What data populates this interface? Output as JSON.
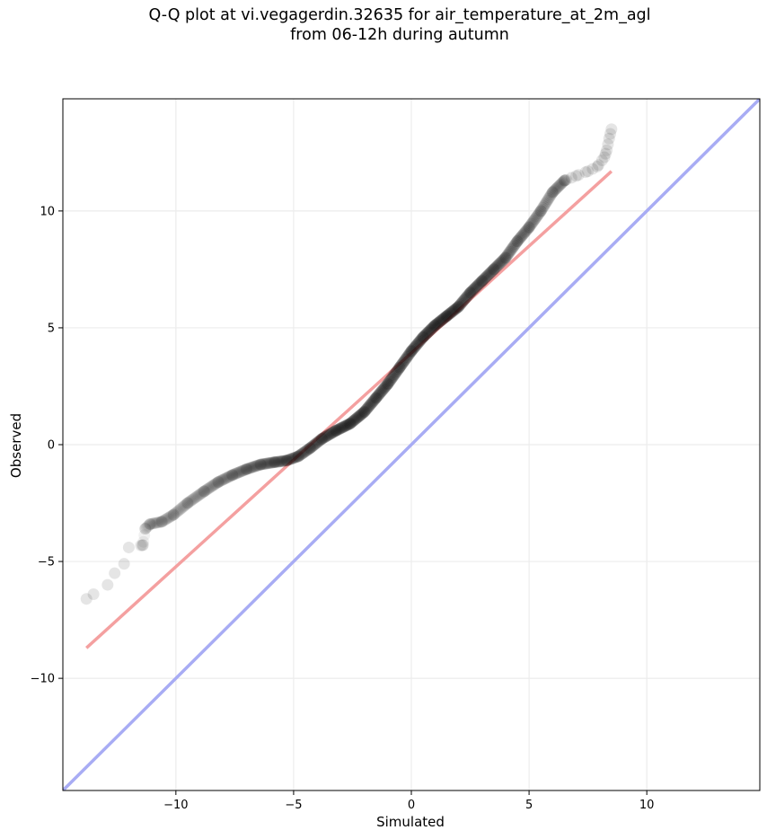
{
  "chart_data": {
    "type": "scatter",
    "title": "Q-Q plot at vi.vegagerdin.32635 for air_temperature_at_2m_agl",
    "subtitle": "from 06-12h during autumn",
    "xlabel": "Simulated",
    "ylabel": "Observed",
    "xlim": [
      -14.8,
      14.8
    ],
    "ylim": [
      -14.8,
      14.8
    ],
    "xticks": [
      -10,
      -5,
      0,
      5,
      10
    ],
    "yticks": [
      -10,
      -5,
      0,
      5,
      10
    ],
    "xtick_labels": [
      "−10",
      "−5",
      "0",
      "5",
      "10"
    ],
    "ytick_labels": [
      "−10",
      "−5",
      "0",
      "5",
      "10"
    ],
    "grid": true,
    "legend": "none",
    "colors": {
      "points": "#000000",
      "fit_line": "#f4a0a0",
      "identity_line": "#a8acf4"
    },
    "fit_line": {
      "x": [
        -13.8,
        8.5
      ],
      "y": [
        -8.7,
        11.7
      ]
    },
    "identity_line": {
      "x": [
        -14.8,
        14.8
      ],
      "y": [
        -14.8,
        14.8
      ]
    },
    "anchors": {
      "x": [
        -13.8,
        -13.5,
        -12.9,
        -12.6,
        -12.2,
        -12.0,
        -11.4,
        -11.3,
        -11.1,
        -10.6,
        -10.1,
        -9.5,
        -8.8,
        -8.2,
        -7.6,
        -7.0,
        -6.4,
        -5.8,
        -5.3,
        -4.8,
        -4.3,
        -3.8,
        -3.2,
        -2.6,
        -2.0,
        -1.5,
        -1.0,
        -0.5,
        0.0,
        0.5,
        1.0,
        1.5,
        2.0,
        2.5,
        3.0,
        3.5,
        4.0,
        4.5,
        5.0,
        5.5,
        6.0,
        6.5,
        7.0,
        7.5,
        7.9,
        8.2,
        8.3,
        8.4,
        8.5
      ],
      "y": [
        -6.6,
        -6.4,
        -6.0,
        -5.5,
        -5.1,
        -4.4,
        -4.3,
        -3.6,
        -3.4,
        -3.3,
        -3.0,
        -2.5,
        -2.0,
        -1.6,
        -1.3,
        -1.05,
        -0.85,
        -0.75,
        -0.68,
        -0.5,
        -0.15,
        0.25,
        0.6,
        0.9,
        1.4,
        2.0,
        2.6,
        3.3,
        4.0,
        4.6,
        5.1,
        5.5,
        5.9,
        6.5,
        7.0,
        7.5,
        8.0,
        8.7,
        9.3,
        10.0,
        10.8,
        11.3,
        11.5,
        11.7,
        11.9,
        12.3,
        12.6,
        13.1,
        13.5
      ]
    }
  }
}
